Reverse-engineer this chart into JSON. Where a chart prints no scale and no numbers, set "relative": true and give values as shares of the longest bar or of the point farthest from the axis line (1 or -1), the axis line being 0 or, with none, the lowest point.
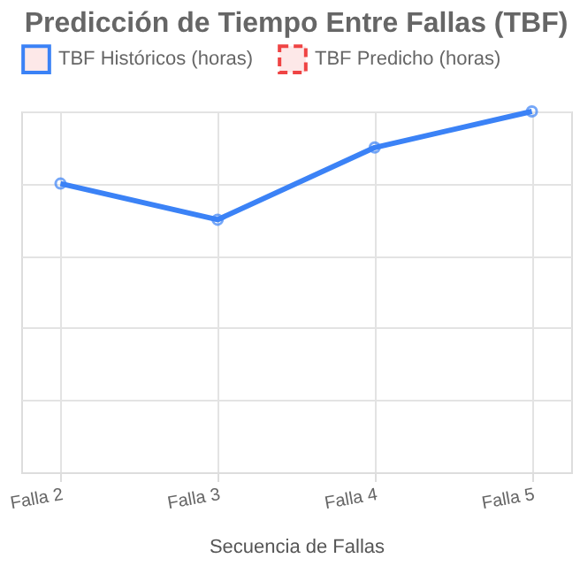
{
  "chart_data": {
    "type": "line",
    "title": "Predicción de Tiempo Entre Fallas (TBF)",
    "xlabel": "Secuencia de Fallas",
    "categories": [
      "Falla 2",
      "Falla 3",
      "Falla 4",
      "Falla 5"
    ],
    "relative": true,
    "series": [
      {
        "name": "TBF Históricos (horas)",
        "color": "#3b82f6",
        "values": [
          0.8,
          0.7,
          0.9,
          1.0
        ],
        "line_style": "solid",
        "marker": "circle"
      },
      {
        "name": "TBF Predicho (horas)",
        "color": "#ef4444",
        "values": [
          null,
          null,
          null,
          null
        ],
        "line_style": "dashed",
        "marker": "none"
      }
    ],
    "grid": true,
    "legend": "top"
  }
}
